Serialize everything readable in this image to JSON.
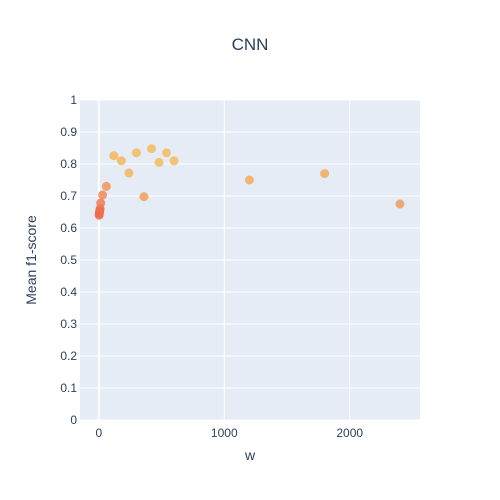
{
  "chart_data": {
    "type": "scatter",
    "title": "CNN",
    "xlabel": "w",
    "ylabel": "Mean f1-score",
    "xlim": [
      -150,
      2560
    ],
    "ylim": [
      0,
      1
    ],
    "grid": true,
    "x_ticks": [
      0,
      1000,
      2000
    ],
    "x_tick_labels": [
      "0",
      "1000",
      "2000"
    ],
    "y_ticks": [
      0,
      0.1,
      0.2,
      0.3,
      0.4,
      0.5,
      0.6,
      0.7,
      0.8,
      0.9,
      1
    ],
    "y_tick_labels": [
      "0",
      "0.1",
      "0.2",
      "0.3",
      "0.4",
      "0.5",
      "0.6",
      "0.7",
      "0.8",
      "0.9",
      "1"
    ],
    "colors": {
      "plot_background": "#e5ecf6",
      "text": "#2a3f5f",
      "marker_low": "#ef553b",
      "marker_high": "#f5b041"
    },
    "series": [
      {
        "points": [
          {
            "x": 2,
            "y": 0.64,
            "color": "#ef6a4c"
          },
          {
            "x": 4,
            "y": 0.645,
            "color": "#ef6a4c"
          },
          {
            "x": 6,
            "y": 0.65,
            "color": "#ef6a4c"
          },
          {
            "x": 8,
            "y": 0.655,
            "color": "#ef6a4c"
          },
          {
            "x": 10,
            "y": 0.66,
            "color": "#ef6f4e"
          },
          {
            "x": 15,
            "y": 0.678,
            "color": "#f07a52"
          },
          {
            "x": 30,
            "y": 0.703,
            "color": "#f18a57"
          },
          {
            "x": 60,
            "y": 0.73,
            "color": "#f2935a"
          },
          {
            "x": 120,
            "y": 0.826,
            "color": "#f5b65d"
          },
          {
            "x": 180,
            "y": 0.81,
            "color": "#f5b65d"
          },
          {
            "x": 240,
            "y": 0.772,
            "color": "#f5b65d"
          },
          {
            "x": 300,
            "y": 0.835,
            "color": "#f5bc5e"
          },
          {
            "x": 360,
            "y": 0.698,
            "color": "#f2a05d"
          },
          {
            "x": 420,
            "y": 0.848,
            "color": "#f5bc5e"
          },
          {
            "x": 480,
            "y": 0.805,
            "color": "#f5bc5e"
          },
          {
            "x": 540,
            "y": 0.835,
            "color": "#f5bc5e"
          },
          {
            "x": 600,
            "y": 0.81,
            "color": "#f5bc5e"
          },
          {
            "x": 1200,
            "y": 0.75,
            "color": "#f3ab5c"
          },
          {
            "x": 1800,
            "y": 0.77,
            "color": "#f3ab5c"
          },
          {
            "x": 2400,
            "y": 0.675,
            "color": "#f19c5a"
          }
        ]
      }
    ]
  }
}
